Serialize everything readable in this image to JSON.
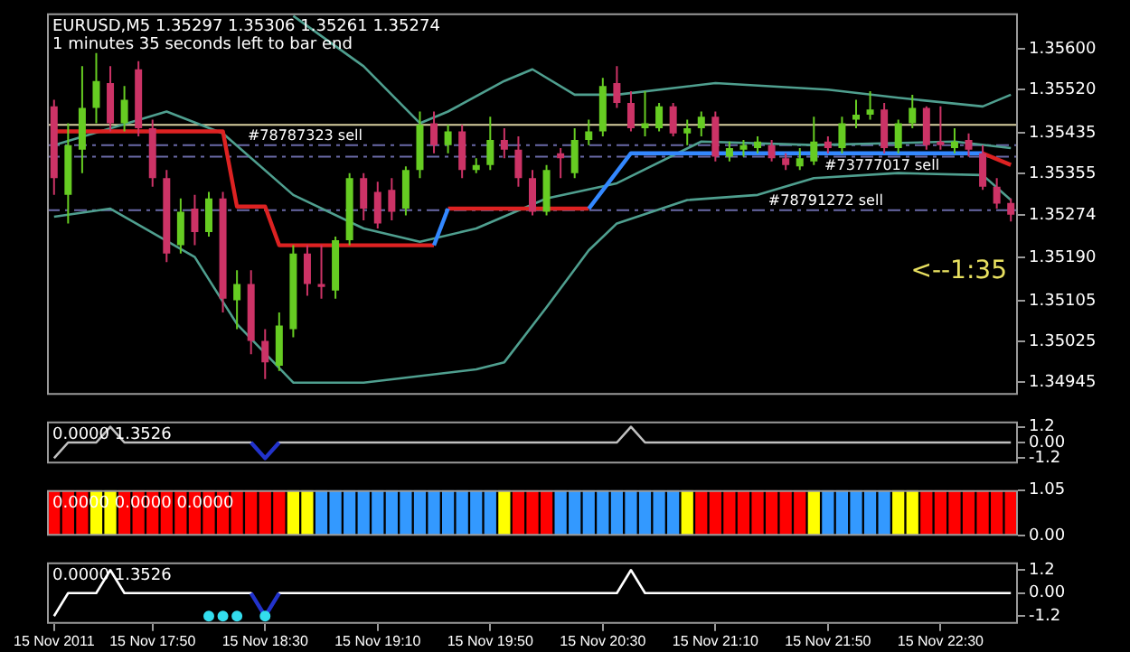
{
  "chart_data": [
    {
      "type": "candlestick",
      "title": "EURUSD,M5 1.35297 1.35306 1.35261 1.35274",
      "subtitle": "1 minutes 35 seconds left to bar end",
      "categories": [
        null,
        null,
        null,
        null,
        null,
        null,
        null,
        null,
        null,
        null,
        null,
        null,
        null,
        null,
        null,
        null,
        null,
        null,
        null,
        null,
        null,
        null,
        null,
        null,
        null,
        null,
        null,
        null,
        null,
        null,
        null,
        null,
        null,
        null,
        null,
        null,
        null,
        null,
        null,
        null,
        null,
        null,
        null,
        null,
        null,
        null,
        null,
        null,
        null,
        null,
        null,
        null,
        null,
        null,
        null,
        null,
        null,
        null,
        null,
        null,
        null,
        null,
        null,
        null,
        null,
        null,
        null,
        null,
        null
      ],
      "ohlc": [
        [
          1.35487,
          1.355,
          1.35313,
          1.35346
        ],
        [
          1.35313,
          1.35454,
          1.35257,
          1.35411
        ],
        [
          1.35402,
          1.35566,
          1.35356,
          1.35484
        ],
        [
          1.35484,
          1.35592,
          1.35454,
          1.35537
        ],
        [
          1.35533,
          1.35566,
          1.35438,
          1.35454
        ],
        [
          1.35454,
          1.35527,
          1.35438,
          1.355
        ],
        [
          1.3556,
          1.35576,
          1.35428,
          1.35444
        ],
        [
          1.35444,
          1.35461,
          1.35329,
          1.35346
        ],
        [
          1.35346,
          1.35362,
          1.35181,
          1.35198
        ],
        [
          1.35214,
          1.35306,
          1.35198,
          1.3528
        ],
        [
          1.35286,
          1.35313,
          1.35214,
          1.3524
        ],
        [
          1.3524,
          1.35319,
          1.35231,
          1.35306
        ],
        [
          1.35306,
          1.35319,
          1.35082,
          1.35109
        ],
        [
          1.35106,
          1.35165,
          1.35049,
          1.35138
        ],
        [
          1.35138,
          1.35165,
          1.35,
          1.35026
        ],
        [
          1.35026,
          1.35049,
          1.34951,
          1.34984
        ],
        [
          1.34977,
          1.35082,
          1.34967,
          1.35056
        ],
        [
          1.35049,
          1.35214,
          1.35033,
          1.35198
        ],
        [
          1.35198,
          1.35214,
          1.35115,
          1.35138
        ],
        [
          1.35138,
          1.35214,
          1.35109,
          1.35132
        ],
        [
          1.35125,
          1.35231,
          1.35109,
          1.35224
        ],
        [
          1.35224,
          1.35356,
          1.35214,
          1.35346
        ],
        [
          1.35346,
          1.35356,
          1.35263,
          1.35286
        ],
        [
          1.35319,
          1.35339,
          1.35247,
          1.35257
        ],
        [
          1.35323,
          1.35346,
          1.35263,
          1.3528
        ],
        [
          1.35286,
          1.35369,
          1.35273,
          1.35362
        ],
        [
          1.35362,
          1.35477,
          1.35346,
          1.35451
        ],
        [
          1.35454,
          1.35477,
          1.35395,
          1.35411
        ],
        [
          1.35411,
          1.35451,
          1.35395,
          1.35438
        ],
        [
          1.35438,
          1.35451,
          1.35346,
          1.35362
        ],
        [
          1.35362,
          1.35385,
          1.35356,
          1.35372
        ],
        [
          1.35372,
          1.35467,
          1.35362,
          1.35421
        ],
        [
          1.35421,
          1.35444,
          1.35385,
          1.35402
        ],
        [
          1.35402,
          1.35428,
          1.35329,
          1.35346
        ],
        [
          1.35346,
          1.35362,
          1.35273,
          1.3528
        ],
        [
          1.3528,
          1.35372,
          1.35273,
          1.35362
        ],
        [
          1.35395,
          1.35405,
          1.35346,
          1.35385
        ],
        [
          1.35356,
          1.35444,
          1.35346,
          1.35421
        ],
        [
          1.35421,
          1.35461,
          1.35411,
          1.35438
        ],
        [
          1.35438,
          1.35543,
          1.35428,
          1.35527
        ],
        [
          1.35533,
          1.35566,
          1.35484,
          1.35494
        ],
        [
          1.35494,
          1.35517,
          1.35438,
          1.35444
        ],
        [
          1.35444,
          1.35517,
          1.35428,
          1.35454
        ],
        [
          1.35444,
          1.35494,
          1.35438,
          1.35487
        ],
        [
          1.35487,
          1.35494,
          1.35428,
          1.35434
        ],
        [
          1.35434,
          1.35461,
          1.35411,
          1.35444
        ],
        [
          1.35444,
          1.35477,
          1.35428,
          1.35467
        ],
        [
          1.35467,
          1.35477,
          1.35379,
          1.35388
        ],
        [
          1.35388,
          1.35418,
          1.35379,
          1.35405
        ],
        [
          1.35402,
          1.35421,
          1.35388,
          1.35411
        ],
        [
          1.35405,
          1.35428,
          1.35395,
          1.35418
        ],
        [
          1.35411,
          1.35421,
          1.35379,
          1.35385
        ],
        [
          1.35385,
          1.35395,
          1.35362,
          1.35372
        ],
        [
          1.35369,
          1.35405,
          1.35362,
          1.35385
        ],
        [
          1.35379,
          1.35467,
          1.35372,
          1.35418
        ],
        [
          1.35418,
          1.35428,
          1.35395,
          1.35405
        ],
        [
          1.35405,
          1.35467,
          1.35395,
          1.35454
        ],
        [
          1.35461,
          1.355,
          1.35444,
          1.35471
        ],
        [
          1.35471,
          1.35517,
          1.35461,
          1.35481
        ],
        [
          1.35481,
          1.35494,
          1.35395,
          1.35405
        ],
        [
          1.35405,
          1.35461,
          1.35395,
          1.35454
        ],
        [
          1.35454,
          1.3551,
          1.35444,
          1.35484
        ],
        [
          1.35484,
          1.35487,
          1.35402,
          1.35411
        ],
        [
          1.35418,
          1.35487,
          1.35402,
          1.35411
        ],
        [
          1.35405,
          1.35444,
          1.35395,
          1.35418
        ],
        [
          1.35421,
          1.35434,
          1.35388,
          1.35402
        ],
        [
          1.35395,
          1.35411,
          1.35323,
          1.35329
        ],
        [
          1.35329,
          1.35346,
          1.35286,
          1.35296
        ],
        [
          1.35297,
          1.35306,
          1.35261,
          1.35274
        ]
      ],
      "colors": [
        "#cc3366",
        "#66cc22",
        "#66cc22",
        "#66cc22",
        "#cc3366",
        "#66cc22",
        "#cc3366",
        "#cc3366",
        "#cc3366",
        "#66cc22",
        "#cc3366",
        "#66cc22",
        "#cc3366",
        "#66cc22",
        "#cc3366",
        "#cc3366",
        "#66cc22",
        "#66cc22",
        "#cc3366",
        "#cc3366",
        "#66cc22",
        "#66cc22",
        "#cc3366",
        "#cc3366",
        "#cc3366",
        "#66cc22",
        "#66cc22",
        "#cc3366",
        "#66cc22",
        "#cc3366",
        "#66cc22",
        "#66cc22",
        "#cc3366",
        "#cc3366",
        "#cc3366",
        "#66cc22",
        "#cc3366",
        "#66cc22",
        "#66cc22",
        "#66cc22",
        "#cc3366",
        "#cc3366",
        "#66cc22",
        "#66cc22",
        "#cc3366",
        "#66cc22",
        "#66cc22",
        "#cc3366",
        "#66cc22",
        "#66cc22",
        "#66cc22",
        "#cc3366",
        "#cc3366",
        "#66cc22",
        "#66cc22",
        "#cc3366",
        "#66cc22",
        "#66cc22",
        "#66cc22",
        "#cc3366",
        "#66cc22",
        "#66cc22",
        "#cc3366",
        "#cc3366",
        "#66cc22",
        "#cc3366",
        "#cc3366",
        "#cc3366",
        "#cc3366"
      ],
      "series": [
        {
          "type": "line",
          "color": "#4f9f8f",
          "values": [
            null,
            null,
            null,
            null,
            null,
            null,
            null,
            null,
            null,
            null,
            null,
            null,
            null,
            null,
            null,
            null,
            null,
            1.35665,
            null,
            null,
            null,
            null,
            1.35566,
            null,
            null,
            null,
            1.35454,
            null,
            1.35477,
            null,
            null,
            null,
            1.35537,
            null,
            1.3556,
            null,
            null,
            1.3551,
            null,
            null,
            1.3551,
            null,
            null,
            null,
            null,
            null,
            null,
            1.35533,
            null,
            null,
            null,
            null,
            null,
            null,
            null,
            1.3552,
            null,
            null,
            null,
            null,
            1.35504,
            null,
            null,
            null,
            null,
            null,
            1.35487,
            null,
            1.3551
          ]
        },
        {
          "type": "line",
          "color": "#4f9f8f",
          "values": [
            1.35411,
            null,
            null,
            null,
            null,
            null,
            null,
            null,
            1.35477,
            null,
            null,
            null,
            1.35434,
            null,
            null,
            null,
            null,
            1.35313,
            null,
            null,
            null,
            null,
            1.35247,
            null,
            null,
            null,
            1.35221,
            null,
            null,
            null,
            1.35247,
            null,
            null,
            null,
            null,
            1.35306,
            null,
            null,
            null,
            null,
            1.35336,
            null,
            null,
            null,
            null,
            null,
            1.35418,
            null,
            null,
            null,
            null,
            null,
            null,
            null,
            1.35411,
            null,
            null,
            null,
            null,
            null,
            null,
            null,
            null,
            null,
            1.35418,
            null,
            null,
            null,
            1.35405
          ]
        },
        {
          "type": "line",
          "color": "#4f9f8f",
          "values": [
            1.3527,
            null,
            null,
            null,
            1.35286,
            null,
            null,
            null,
            null,
            null,
            1.35191,
            null,
            null,
            1.35059,
            null,
            null,
            null,
            1.34944,
            null,
            null,
            null,
            null,
            1.34944,
            null,
            null,
            null,
            null,
            null,
            null,
            null,
            1.3497,
            null,
            1.34984,
            null,
            null,
            1.35092,
            null,
            null,
            1.35204,
            null,
            1.35257,
            null,
            null,
            null,
            null,
            1.35303,
            null,
            null,
            null,
            null,
            1.35313,
            null,
            null,
            null,
            1.35346,
            null,
            null,
            null,
            null,
            null,
            1.35356,
            null,
            null,
            null,
            null,
            null,
            1.35352,
            null,
            1.35303
          ]
        },
        {
          "type": "line",
          "color": "#dd2222",
          "values": [
            1.35438,
            null,
            null,
            null,
            null,
            null,
            null,
            null,
            null,
            null,
            null,
            null,
            1.35438,
            1.3529,
            null,
            1.3529,
            1.35214,
            null,
            null,
            null,
            null,
            null,
            null,
            null,
            null,
            null,
            null,
            1.35214,
            null,
            null,
            null,
            null,
            null,
            null,
            null,
            null,
            null,
            null,
            null,
            null,
            null,
            null,
            null,
            null,
            null,
            null,
            null,
            null,
            null,
            null,
            null,
            null,
            null,
            null,
            null,
            null,
            null,
            null,
            null,
            null,
            null,
            null,
            null,
            null,
            null,
            null,
            null,
            null,
            null
          ]
        },
        {
          "type": "line",
          "color": "#dd2222",
          "values": [
            null,
            null,
            null,
            null,
            null,
            null,
            null,
            null,
            null,
            null,
            null,
            null,
            null,
            null,
            null,
            null,
            null,
            null,
            null,
            null,
            null,
            null,
            null,
            null,
            null,
            null,
            null,
            null,
            1.35286,
            null,
            null,
            null,
            null,
            null,
            null,
            null,
            null,
            null,
            1.35286,
            null,
            null,
            null,
            null,
            null,
            null,
            null,
            null,
            null,
            null,
            null,
            null,
            null,
            null,
            null,
            null,
            null,
            null,
            null,
            null,
            null,
            null,
            null,
            null,
            null,
            null,
            null,
            null,
            null,
            null
          ]
        },
        {
          "type": "line",
          "color": "#dd2222",
          "values": [
            null,
            null,
            null,
            null,
            null,
            null,
            null,
            null,
            null,
            null,
            null,
            null,
            null,
            null,
            null,
            null,
            null,
            null,
            null,
            null,
            null,
            null,
            null,
            null,
            null,
            null,
            null,
            null,
            null,
            null,
            null,
            null,
            null,
            null,
            null,
            null,
            null,
            null,
            null,
            null,
            null,
            null,
            null,
            null,
            null,
            null,
            null,
            null,
            null,
            null,
            null,
            null,
            null,
            null,
            null,
            null,
            null,
            null,
            null,
            null,
            null,
            null,
            null,
            null,
            null,
            null,
            1.35395,
            null,
            1.35372
          ]
        },
        {
          "type": "line",
          "color": "#3388ff",
          "values": [
            null,
            null,
            null,
            null,
            null,
            null,
            null,
            null,
            null,
            null,
            null,
            null,
            null,
            null,
            null,
            null,
            null,
            null,
            null,
            null,
            null,
            null,
            null,
            null,
            null,
            null,
            null,
            1.35214,
            1.35286,
            null,
            null,
            null,
            null,
            null,
            null,
            null,
            null,
            null,
            null,
            null,
            null,
            null,
            null,
            null,
            null,
            null,
            null,
            null,
            null,
            null,
            null,
            null,
            null,
            null,
            null,
            null,
            null,
            null,
            null,
            null,
            null,
            null,
            null,
            null,
            null,
            null,
            null,
            null,
            null
          ]
        },
        {
          "type": "line",
          "color": "#3388ff",
          "values": [
            null,
            null,
            null,
            null,
            null,
            null,
            null,
            null,
            null,
            null,
            null,
            null,
            null,
            null,
            null,
            null,
            null,
            null,
            null,
            null,
            null,
            null,
            null,
            null,
            null,
            null,
            null,
            null,
            null,
            null,
            null,
            null,
            null,
            null,
            null,
            null,
            null,
            null,
            1.35286,
            null,
            null,
            1.35395,
            null,
            null,
            null,
            null,
            null,
            null,
            null,
            null,
            null,
            null,
            null,
            null,
            null,
            null,
            null,
            null,
            null,
            null,
            null,
            null,
            null,
            null,
            null,
            null,
            1.35395,
            null,
            null
          ]
        }
      ],
      "ref_lines": [
        {
          "axis": "y",
          "value": 1.35451,
          "color": "#d8d0a0",
          "line_style": "solid"
        },
        {
          "axis": "y",
          "value": 1.35411,
          "label": "#78787323 sell",
          "color": "#6a6aa8",
          "line_style": "dashed"
        },
        {
          "axis": "y",
          "value": 1.35388,
          "label": "#73777017 sell",
          "color": "#6a6aa8",
          "line_style": "dashed"
        },
        {
          "axis": "y",
          "value": 1.35283,
          "label": "#78791272 sell",
          "color": "#6a6aa8",
          "line_style": "dashed"
        }
      ],
      "annotations": [
        "<--1:35"
      ],
      "ylim": [
        1.3492,
        1.3567
      ],
      "yticks": [
        {
          "value": 1.356,
          "label": "1.35600"
        },
        {
          "value": 1.3552,
          "label": "1.35520"
        },
        {
          "value": 1.35435,
          "label": "1.35435"
        },
        {
          "value": 1.35355,
          "label": "1.35355"
        },
        {
          "value": 1.35274,
          "label": "1.35274"
        },
        {
          "value": 1.3519,
          "label": "1.35190"
        },
        {
          "value": 1.35105,
          "label": "1.35105"
        },
        {
          "value": 1.35025,
          "label": "1.35025"
        },
        {
          "value": 1.34945,
          "label": "1.34945"
        }
      ],
      "tick_labels": "y"
    },
    {
      "type": "line",
      "title": "0.0000 1.3526",
      "categories": [
        null,
        null,
        null,
        null,
        null,
        null,
        null,
        null,
        null,
        null,
        null,
        null,
        null,
        null,
        null,
        null,
        null,
        null,
        null,
        null,
        null,
        null,
        null,
        null,
        null,
        null,
        null,
        null,
        null,
        null,
        null,
        null,
        null,
        null,
        null,
        null,
        null,
        null,
        null,
        null,
        null,
        null,
        null,
        null,
        null,
        null,
        null,
        null,
        null,
        null,
        null,
        null,
        null,
        null,
        null,
        null,
        null,
        null,
        null,
        null,
        null,
        null,
        null,
        null,
        null,
        null,
        null,
        null,
        null
      ],
      "series": [
        {
          "type": "line",
          "color": "#c0c0c0",
          "values": [
            -1.2,
            0,
            null,
            0,
            1.2,
            0,
            null,
            null,
            null,
            null,
            null,
            null,
            null,
            null,
            0,
            -1.2,
            0,
            null,
            null,
            null,
            null,
            null,
            null,
            null,
            null,
            null,
            null,
            null,
            null,
            null,
            null,
            null,
            null,
            null,
            null,
            null,
            null,
            null,
            null,
            null,
            0,
            1.2,
            0,
            null,
            null,
            null,
            null,
            null,
            null,
            null,
            null,
            null,
            null,
            null,
            null,
            null,
            null,
            null,
            null,
            null,
            null,
            null,
            null,
            null,
            null,
            null,
            null,
            null,
            0
          ]
        },
        {
          "type": "line",
          "color": "#2233cc",
          "values": [
            null,
            null,
            null,
            null,
            null,
            null,
            null,
            null,
            null,
            null,
            null,
            null,
            null,
            null,
            0,
            -1.2,
            0,
            null,
            null,
            null,
            null,
            null,
            null,
            null,
            null,
            null,
            null,
            null,
            null,
            null,
            null,
            null,
            null,
            null,
            null,
            null,
            null,
            null,
            null,
            null,
            null,
            null,
            null,
            null,
            null,
            null,
            null,
            null,
            null,
            null,
            null,
            null,
            null,
            null,
            null,
            null,
            null,
            null,
            null,
            null,
            null,
            null,
            null,
            null,
            null,
            null,
            null,
            null,
            null
          ]
        }
      ],
      "ylim": [
        -1.6,
        1.6
      ],
      "yticks": [
        1.2,
        {
          "value": 0,
          "label": "0.00"
        },
        -1.2
      ],
      "tick_labels": "y"
    },
    {
      "type": "bar",
      "title": "0.0000 0.0000 0.0000",
      "categories": [
        null,
        null,
        null,
        null,
        null,
        null,
        null,
        null,
        null,
        null,
        null,
        null,
        null,
        null,
        null,
        null,
        null,
        null,
        null,
        null,
        null,
        null,
        null,
        null,
        null,
        null,
        null,
        null,
        null,
        null,
        null,
        null,
        null,
        null,
        null,
        null,
        null,
        null,
        null,
        null,
        null,
        null,
        null,
        null,
        null,
        null,
        null,
        null,
        null,
        null,
        null,
        null,
        null,
        null,
        null,
        null,
        null,
        null,
        null,
        null,
        null,
        null,
        null,
        null,
        null,
        null,
        null,
        null,
        null
      ],
      "values": [
        1.05,
        1.05,
        1.05,
        1.05,
        1.05,
        1.05,
        1.05,
        1.05,
        1.05,
        1.05,
        1.05,
        1.05,
        1.05,
        1.05,
        1.05,
        1.05,
        1.05,
        1.05,
        1.05,
        1.05,
        1.05,
        1.05,
        1.05,
        1.05,
        1.05,
        1.05,
        1.05,
        1.05,
        1.05,
        1.05,
        1.05,
        1.05,
        1.05,
        1.05,
        1.05,
        1.05,
        1.05,
        1.05,
        1.05,
        1.05,
        1.05,
        1.05,
        1.05,
        1.05,
        1.05,
        1.05,
        1.05,
        1.05,
        1.05,
        1.05,
        1.05,
        1.05,
        1.05,
        1.05,
        1.05,
        1.05,
        1.05,
        1.05,
        1.05,
        1.05,
        1.05,
        1.05,
        1.05,
        1.05,
        1.05,
        1.05,
        1.05,
        1.05,
        1.05
      ],
      "colors": [
        "#ff0000",
        "#ff0000",
        "#ff0000",
        "#ffff00",
        "#ffff00",
        "#ff0000",
        "#ff0000",
        "#ff0000",
        "#ff0000",
        "#ff0000",
        "#ff0000",
        "#ff0000",
        "#ff0000",
        "#ff0000",
        "#ff0000",
        "#ff0000",
        "#ff0000",
        "#ffff00",
        "#ffff00",
        "#3399ff",
        "#3399ff",
        "#3399ff",
        "#3399ff",
        "#3399ff",
        "#3399ff",
        "#3399ff",
        "#3399ff",
        "#3399ff",
        "#3399ff",
        "#3399ff",
        "#3399ff",
        "#3399ff",
        "#ffff00",
        "#ff0000",
        "#ff0000",
        "#ff0000",
        "#3399ff",
        "#3399ff",
        "#3399ff",
        "#3399ff",
        "#3399ff",
        "#3399ff",
        "#3399ff",
        "#3399ff",
        "#3399ff",
        "#ffff00",
        "#ff0000",
        "#ff0000",
        "#ff0000",
        "#ff0000",
        "#ff0000",
        "#ff0000",
        "#ff0000",
        "#ff0000",
        "#ffff00",
        "#3399ff",
        "#3399ff",
        "#3399ff",
        "#3399ff",
        "#3399ff",
        "#ffff00",
        "#ffff00",
        "#ff0000",
        "#ff0000",
        "#ff0000",
        "#ff0000",
        "#ff0000",
        "#ff0000",
        "#ff0000"
      ],
      "ylim": [
        0,
        1.05
      ],
      "yticks": [
        {
          "value": 0,
          "label": "0.00"
        },
        1.05
      ],
      "tick_labels": "y"
    },
    {
      "type": "line",
      "title": "0.0000 1.3526",
      "categories": [
        "15 Nov 2011",
        null,
        null,
        null,
        null,
        null,
        null,
        "15 Nov 17:50",
        null,
        null,
        null,
        null,
        null,
        null,
        null,
        "15 Nov 18:30",
        null,
        null,
        null,
        null,
        null,
        null,
        null,
        "15 Nov 19:10",
        null,
        null,
        null,
        null,
        null,
        null,
        null,
        "15 Nov 19:50",
        null,
        null,
        null,
        null,
        null,
        null,
        null,
        "15 Nov 20:30",
        null,
        null,
        null,
        null,
        null,
        null,
        null,
        "15 Nov 21:10",
        null,
        null,
        null,
        null,
        null,
        null,
        null,
        "15 Nov 21:50",
        null,
        null,
        null,
        null,
        null,
        null,
        null,
        "15 Nov 22:30",
        null,
        null,
        null,
        null,
        null
      ],
      "series": [
        {
          "type": "line",
          "color": "#ffffff",
          "values": [
            -1.2,
            0,
            null,
            0,
            1.2,
            0,
            null,
            null,
            null,
            null,
            null,
            null,
            null,
            null,
            0,
            -1.2,
            0,
            null,
            null,
            null,
            null,
            null,
            null,
            null,
            null,
            null,
            null,
            null,
            null,
            null,
            null,
            null,
            null,
            null,
            null,
            null,
            null,
            null,
            null,
            null,
            0,
            1.2,
            0,
            null,
            null,
            null,
            null,
            null,
            null,
            null,
            null,
            null,
            null,
            null,
            null,
            null,
            null,
            null,
            null,
            null,
            null,
            null,
            null,
            null,
            null,
            null,
            null,
            null,
            0
          ]
        },
        {
          "type": "line",
          "color": "#2233cc",
          "values": [
            null,
            null,
            null,
            null,
            null,
            null,
            null,
            null,
            null,
            null,
            null,
            null,
            null,
            null,
            0,
            -1.2,
            0,
            null,
            null,
            null,
            null,
            null,
            null,
            null,
            null,
            null,
            null,
            null,
            null,
            null,
            null,
            null,
            null,
            null,
            null,
            null,
            null,
            null,
            null,
            null,
            null,
            null,
            null,
            null,
            null,
            null,
            null,
            null,
            null,
            null,
            null,
            null,
            null,
            null,
            null,
            null,
            null,
            null,
            null,
            null,
            null,
            null,
            null,
            null,
            null,
            null,
            null,
            null,
            null
          ]
        },
        {
          "type": "scatter",
          "color": "#33ddee",
          "marker": "circle",
          "values": [
            null,
            null,
            null,
            null,
            null,
            null,
            null,
            null,
            null,
            null,
            null,
            -1.2,
            -1.2,
            -1.2,
            null,
            -1.2,
            null,
            null,
            null,
            null,
            null,
            null,
            null,
            null,
            null,
            null,
            null,
            null,
            null,
            null,
            null,
            null,
            null,
            null,
            null,
            null,
            null,
            null,
            null,
            null,
            null,
            null,
            null,
            null,
            null,
            null,
            null,
            null,
            null,
            null,
            null,
            null,
            null,
            null,
            null,
            null,
            null,
            null,
            null,
            null,
            null,
            null,
            null,
            null,
            null,
            null,
            null,
            null,
            null
          ]
        }
      ],
      "ylim": [
        -1.6,
        1.6
      ],
      "yticks": [
        1.2,
        {
          "value": 0,
          "label": "0.00"
        },
        -1.2
      ]
    }
  ]
}
